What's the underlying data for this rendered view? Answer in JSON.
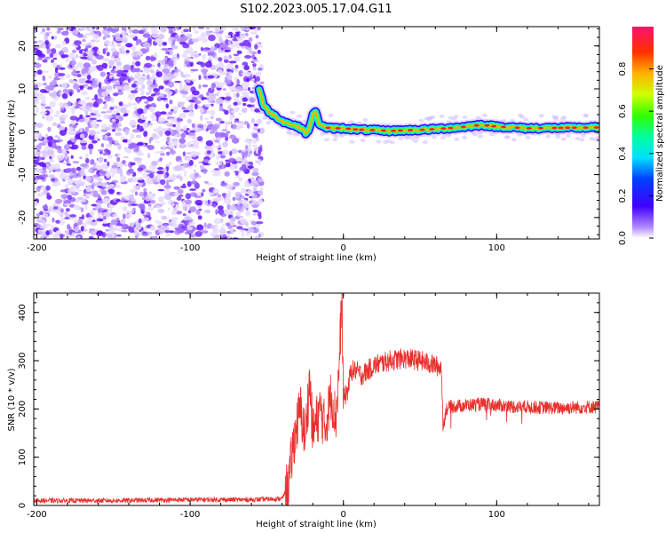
{
  "title": "S102.2023.005.17.04.G11",
  "chart_data": [
    {
      "type": "heatmap",
      "xlabel": "Height of straight line (km)",
      "ylabel": "Frequency (Hz)",
      "xlim": [
        -202,
        167
      ],
      "ylim": [
        -25,
        24.5
      ],
      "x_ticks": [
        -200,
        -100,
        0,
        100
      ],
      "y_ticks": [
        -20,
        -10,
        0,
        10,
        20
      ],
      "grid": false,
      "colorbar": {
        "label": "Normalized spectral amplitude",
        "range": [
          0,
          1
        ],
        "ticks": [
          0.0,
          0.2,
          0.4,
          0.6,
          0.8
        ],
        "colormap": "rainbow"
      },
      "noise_region": {
        "x_from": -202,
        "x_to": -53,
        "amplitude_range": [
          0.0,
          0.15
        ]
      },
      "ridge": {
        "amplitude": 1.0,
        "points": [
          [
            -55,
            10
          ],
          [
            -52,
            6
          ],
          [
            -48,
            4.5
          ],
          [
            -44,
            3.5
          ],
          [
            -40,
            2.5
          ],
          [
            -35,
            1.8
          ],
          [
            -30,
            1.2
          ],
          [
            -26,
            0.5
          ],
          [
            -24,
            -0.5
          ],
          [
            -22,
            1.0
          ],
          [
            -20,
            4.0
          ],
          [
            -18,
            4.5
          ],
          [
            -16,
            2.0
          ],
          [
            -12,
            1.0
          ],
          [
            -8,
            0.8
          ],
          [
            0,
            0.8
          ],
          [
            10,
            0.5
          ],
          [
            30,
            0.2
          ],
          [
            55,
            0.5
          ],
          [
            75,
            1.0
          ],
          [
            90,
            1.6
          ],
          [
            100,
            1.2
          ],
          [
            120,
            0.8
          ],
          [
            140,
            0.9
          ],
          [
            167,
            1.0
          ]
        ]
      }
    },
    {
      "type": "line",
      "xlabel": "Height of straight line (km)",
      "ylabel": "SNR (10 * v/v)",
      "xlim": [
        -202,
        167
      ],
      "ylim": [
        0,
        440
      ],
      "x_ticks": [
        -200,
        -100,
        0,
        100
      ],
      "y_ticks": [
        0,
        100,
        200,
        300,
        400
      ],
      "grid": false,
      "series_color": "#e8302c",
      "series": [
        {
          "points": [
            [
              -202,
              10
            ],
            [
              -150,
              10
            ],
            [
              -100,
              12
            ],
            [
              -60,
              12
            ],
            [
              -40,
              14
            ],
            [
              -36,
              40
            ],
            [
              -32,
              140
            ],
            [
              -28,
              200
            ],
            [
              -25,
              140
            ],
            [
              -22,
              260
            ],
            [
              -20,
              150
            ],
            [
              -15,
              200
            ],
            [
              -12,
              160
            ],
            [
              -8,
              230
            ],
            [
              -5,
              180
            ],
            [
              -3,
              270
            ],
            [
              -1,
              430
            ],
            [
              0,
              220
            ],
            [
              3,
              240
            ],
            [
              5,
              280
            ],
            [
              8,
              280
            ],
            [
              12,
              270
            ],
            [
              20,
              290
            ],
            [
              30,
              300
            ],
            [
              40,
              305
            ],
            [
              50,
              300
            ],
            [
              60,
              290
            ],
            [
              64,
              285
            ],
            [
              65,
              160
            ],
            [
              67,
              200
            ],
            [
              70,
              205
            ],
            [
              90,
              210
            ],
            [
              110,
              205
            ],
            [
              140,
              202
            ],
            [
              167,
              205
            ]
          ]
        }
      ]
    }
  ]
}
